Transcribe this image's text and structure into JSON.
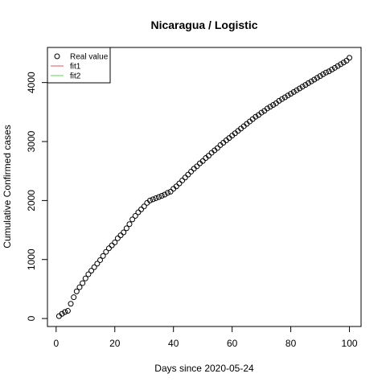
{
  "chart_data": {
    "type": "scatter",
    "title": "Nicaragua / Logistic",
    "xlabel": "Days since 2020-05-24",
    "ylabel": "Cumulative Confirmed cases",
    "xlim": [
      1,
      100
    ],
    "ylim": [
      40,
      4420
    ],
    "x_ticks": [
      0,
      20,
      40,
      60,
      80,
      100
    ],
    "y_ticks": [
      0,
      1000,
      2000,
      3000,
      4000
    ],
    "grid": false,
    "legend": {
      "position": "top-left",
      "entries": [
        {
          "label": "Real value",
          "symbol": "open-circle",
          "color": "#000000"
        },
        {
          "label": "fit1",
          "symbol": "line",
          "color": "#df536b"
        },
        {
          "label": "fit2",
          "symbol": "line",
          "color": "#61d04f"
        }
      ]
    },
    "series": [
      {
        "name": "Real value",
        "x": [
          1,
          2,
          3,
          4,
          5,
          6,
          7,
          8,
          9,
          10,
          11,
          12,
          13,
          14,
          15,
          16,
          17,
          18,
          19,
          20,
          21,
          22,
          23,
          24,
          25,
          26,
          27,
          28,
          29,
          30,
          31,
          32,
          33,
          34,
          35,
          36,
          37,
          38,
          39,
          40,
          41,
          42,
          43,
          44,
          45,
          46,
          47,
          48,
          49,
          50,
          51,
          52,
          53,
          54,
          55,
          56,
          57,
          58,
          59,
          60,
          61,
          62,
          63,
          64,
          65,
          66,
          67,
          68,
          69,
          70,
          71,
          72,
          73,
          74,
          75,
          76,
          77,
          78,
          79,
          80,
          81,
          82,
          83,
          84,
          85,
          86,
          87,
          88,
          89,
          90,
          91,
          92,
          93,
          94,
          95,
          96,
          97,
          98,
          99,
          100
        ],
        "y": [
          40,
          80,
          110,
          130,
          250,
          360,
          460,
          530,
          600,
          680,
          750,
          810,
          870,
          930,
          990,
          1060,
          1130,
          1190,
          1240,
          1290,
          1360,
          1410,
          1460,
          1530,
          1600,
          1680,
          1740,
          1800,
          1850,
          1900,
          1960,
          2000,
          2020,
          2040,
          2060,
          2080,
          2100,
          2130,
          2150,
          2200,
          2240,
          2290,
          2340,
          2390,
          2440,
          2490,
          2540,
          2580,
          2630,
          2670,
          2720,
          2760,
          2810,
          2850,
          2890,
          2940,
          2980,
          3020,
          3060,
          3100,
          3140,
          3180,
          3220,
          3260,
          3300,
          3340,
          3380,
          3420,
          3450,
          3490,
          3520,
          3560,
          3590,
          3620,
          3650,
          3690,
          3720,
          3750,
          3780,
          3810,
          3840,
          3870,
          3900,
          3930,
          3960,
          3990,
          4020,
          4050,
          4080,
          4110,
          4140,
          4170,
          4190,
          4220,
          4250,
          4280,
          4310,
          4340,
          4370,
          4420
        ]
      }
    ]
  }
}
